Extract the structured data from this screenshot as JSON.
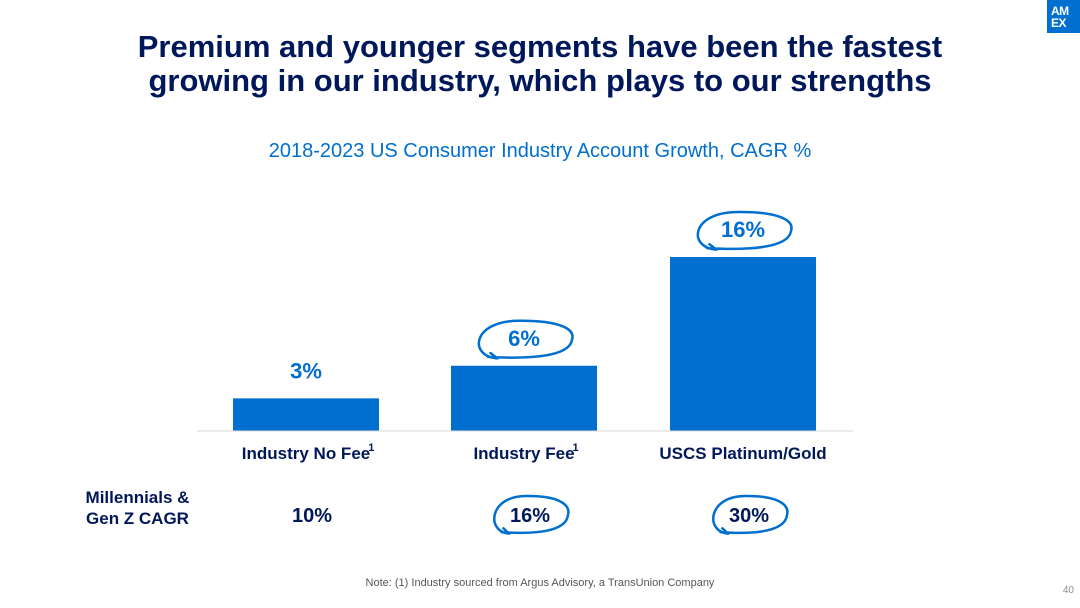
{
  "brand": {
    "logo_line1": "AM",
    "logo_line2": "EX",
    "color": "#016fd0",
    "navy": "#00175a"
  },
  "headline": {
    "line1": "Premium and younger segments have been the fastest",
    "line2": "growing in our industry, which plays to our strengths"
  },
  "chart_data": {
    "type": "bar",
    "title": "2018-2023 US Consumer Industry Account Growth, CAGR %",
    "categories": [
      "Industry No Fee",
      "Industry Fee",
      "USCS Platinum/Gold"
    ],
    "category_superscripts": [
      "1",
      "1",
      ""
    ],
    "values": [
      3,
      6,
      16
    ],
    "value_labels": [
      "3%",
      "6%",
      "16%"
    ],
    "highlighted": [
      false,
      true,
      true
    ],
    "ylim": [
      0,
      16
    ],
    "xlabel": "",
    "ylabel": "",
    "grid": false,
    "bar_color": "#006fcf"
  },
  "secondary_row": {
    "label_line1": "Millennials &",
    "label_line2": "Gen Z CAGR",
    "values": [
      "10%",
      "16%",
      "30%"
    ],
    "highlighted": [
      false,
      true,
      true
    ]
  },
  "footer": {
    "note": "Note: (1) Industry sourced from Argus Advisory, a TransUnion Company",
    "page_number": "40"
  }
}
